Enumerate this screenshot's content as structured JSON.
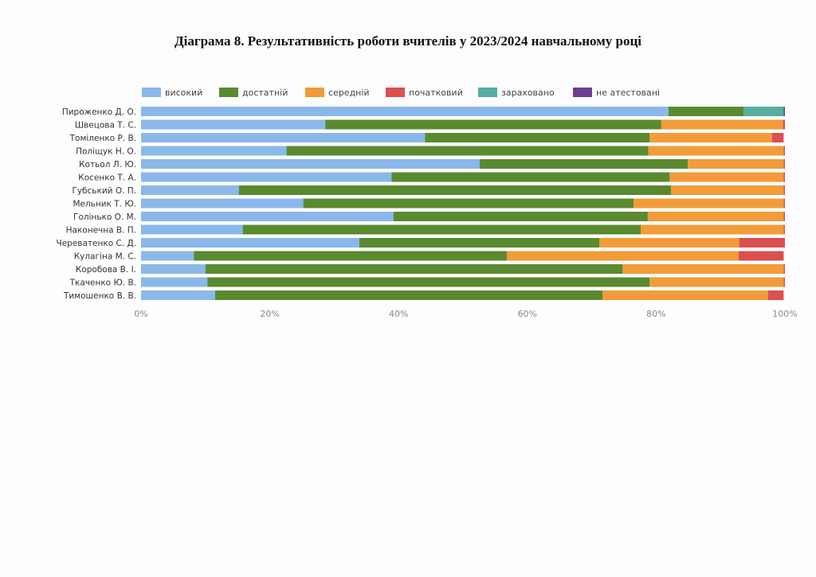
{
  "page": {
    "title": "Діаграма 8. Результативність роботи вчителів у 2023/2024 навчальному році"
  },
  "chart_data": {
    "type": "bar",
    "orientation": "horizontal",
    "stacked": true,
    "categories": [
      "Пироженко Д. О.",
      "Швецова Т. С.",
      "Томіленко Р. В.",
      "Поліщук Н. О.",
      "Котьол Л. Ю.",
      "Косенко Т. А.",
      "Губський О. П.",
      "Мельник Т. Ю.",
      "Голінько О. М.",
      "Наконечна В. П.",
      "Череватенко С. Д.",
      "Кулагіна М. С.",
      "Коробова В. І.",
      "Ткаченко Ю. В.",
      "Тимошенко В. В."
    ],
    "series": [
      {
        "name": "високий",
        "color": "#8ab8ea",
        "values": [
          81.9,
          28.6,
          44.1,
          22.6,
          52.6,
          38.9,
          15.2,
          25.2,
          39.2,
          15.8,
          33.9,
          8.2,
          10.0,
          10.3,
          11.5
        ]
      },
      {
        "name": "достатній",
        "color": "#5a8a30",
        "values": [
          11.7,
          52.2,
          34.9,
          56.2,
          32.3,
          43.2,
          67.1,
          51.3,
          39.5,
          61.8,
          37.3,
          48.6,
          64.8,
          68.7,
          60.2
        ]
      },
      {
        "name": "середній",
        "color": "#f19c38",
        "values": [
          0,
          18.9,
          19.0,
          21.0,
          14.9,
          17.7,
          17.5,
          23.3,
          21.1,
          22.2,
          21.7,
          36.0,
          25.0,
          20.8,
          25.7
        ]
      },
      {
        "name": "початковий",
        "color": "#d9504f",
        "values": [
          0,
          0.3,
          1.8,
          0.2,
          0.2,
          0.2,
          0.2,
          0.2,
          0.2,
          0.2,
          7.1,
          7.0,
          0.2,
          0.2,
          2.4
        ]
      },
      {
        "name": "зараховано",
        "color": "#55aea0",
        "values": [
          6.2,
          0,
          0,
          0,
          0,
          0,
          0,
          0,
          0,
          0,
          0,
          0,
          0,
          0,
          0
        ]
      },
      {
        "name": "не атестовані",
        "color": "#6c3d90",
        "values": [
          0.2,
          0,
          0,
          0,
          0,
          0,
          0,
          0,
          0,
          0,
          0,
          0,
          0,
          0,
          0
        ]
      }
    ],
    "x_ticks": [
      "0%",
      "20%",
      "40%",
      "60%",
      "80%",
      "100%"
    ],
    "xlim": [
      0,
      100
    ],
    "legend_position": "top",
    "grid": false
  }
}
